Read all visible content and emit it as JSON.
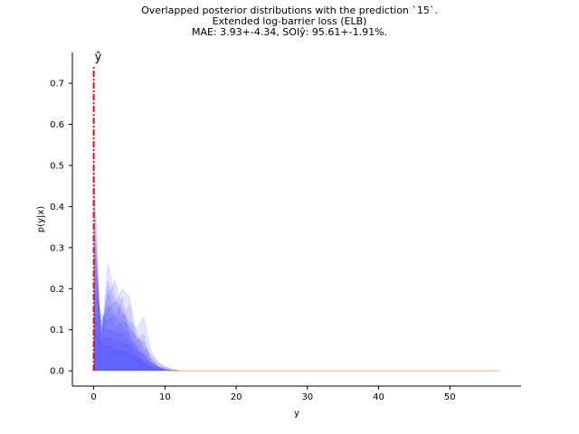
{
  "titles": {
    "line1": "Overlapped posterior distributions with the prediction `15`.",
    "line2": "Extended log-barrier loss (ELB)",
    "line3": "MAE: 3.93+-4.34, SOIŷ: 95.61+-1.91%."
  },
  "chart_data": {
    "type": "area",
    "xlabel": "y",
    "ylabel": "p(y|x)",
    "xlim": [
      -3,
      60
    ],
    "ylim": [
      -0.037,
      0.775
    ],
    "xticks": [
      0,
      10,
      20,
      30,
      40,
      50
    ],
    "yticks": [
      0.0,
      0.1,
      0.2,
      0.3,
      0.4,
      0.5,
      0.6,
      0.7
    ],
    "ytick_labels": [
      "0.0",
      "0.1",
      "0.2",
      "0.3",
      "0.4",
      "0.5",
      "0.6",
      "0.7"
    ],
    "grid": false,
    "prediction_label": "ŷ",
    "prediction_line": {
      "x": 0,
      "y_max": 0.74,
      "color": "#e01010",
      "style": "dash-dot"
    },
    "posterior_color": "#2a2aff",
    "tail_color": "#f0b070",
    "tail_x_end": 57,
    "series": [
      {
        "x": [
          0,
          1,
          2,
          3,
          4,
          5,
          6,
          7,
          8,
          9,
          10,
          11,
          12
        ],
        "values": [
          0.52,
          0.05,
          0.26,
          0.18,
          0.14,
          0.12,
          0.1,
          0.13,
          0.05,
          0.02,
          0.01,
          0.005,
          0
        ]
      },
      {
        "x": [
          0,
          1,
          2,
          3,
          4,
          5,
          6,
          7,
          8,
          9,
          10,
          11,
          12
        ],
        "values": [
          0.4,
          0.08,
          0.22,
          0.16,
          0.2,
          0.18,
          0.09,
          0.06,
          0.04,
          0.02,
          0.01,
          0.003,
          0
        ]
      },
      {
        "x": [
          0,
          1,
          2,
          3,
          4,
          5,
          6,
          7,
          8,
          9,
          10,
          11,
          12
        ],
        "values": [
          0.33,
          0.1,
          0.18,
          0.22,
          0.15,
          0.1,
          0.08,
          0.05,
          0.03,
          0.01,
          0.005,
          0.002,
          0
        ]
      },
      {
        "x": [
          0,
          1,
          2,
          3,
          4,
          5,
          6,
          7,
          8,
          9,
          10,
          11,
          12
        ],
        "values": [
          0.25,
          0.12,
          0.15,
          0.17,
          0.13,
          0.16,
          0.07,
          0.09,
          0.02,
          0.01,
          0.004,
          0.001,
          0
        ]
      },
      {
        "x": [
          0,
          1,
          2,
          3,
          4,
          5,
          6,
          7,
          8,
          9,
          10,
          11,
          12
        ],
        "values": [
          0.45,
          0.06,
          0.2,
          0.12,
          0.18,
          0.08,
          0.06,
          0.04,
          0.02,
          0.01,
          0.003,
          0.001,
          0
        ]
      },
      {
        "x": [
          0,
          1,
          2,
          3,
          4,
          5,
          6,
          7,
          8,
          9,
          10,
          11,
          12
        ],
        "values": [
          0.2,
          0.14,
          0.12,
          0.14,
          0.1,
          0.09,
          0.05,
          0.03,
          0.015,
          0.006,
          0.002,
          0.001,
          0
        ]
      },
      {
        "x": [
          0,
          1,
          2,
          3,
          4,
          5,
          6,
          7,
          8,
          9,
          10,
          11,
          12
        ],
        "values": [
          0.36,
          0.09,
          0.16,
          0.1,
          0.12,
          0.11,
          0.08,
          0.07,
          0.03,
          0.01,
          0.003,
          0.001,
          0
        ]
      },
      {
        "x": [
          0,
          1,
          2,
          3,
          4,
          5,
          6,
          7,
          8,
          9,
          10,
          11,
          12
        ],
        "values": [
          0.3,
          0.11,
          0.1,
          0.09,
          0.09,
          0.07,
          0.05,
          0.04,
          0.02,
          0.008,
          0.002,
          0.001,
          0
        ]
      },
      {
        "x": [
          0,
          1,
          2,
          3,
          4,
          5,
          6,
          7,
          8,
          9,
          10,
          11,
          12
        ],
        "values": [
          0.15,
          0.08,
          0.08,
          0.07,
          0.07,
          0.06,
          0.04,
          0.02,
          0.01,
          0.004,
          0.001,
          0,
          0
        ]
      },
      {
        "x": [
          0,
          1,
          2,
          3,
          4,
          5,
          6,
          7,
          8,
          9,
          10,
          11,
          12
        ],
        "values": [
          0.1,
          0.06,
          0.06,
          0.05,
          0.05,
          0.04,
          0.03,
          0.02,
          0.008,
          0.003,
          0.001,
          0,
          0
        ]
      }
    ]
  }
}
